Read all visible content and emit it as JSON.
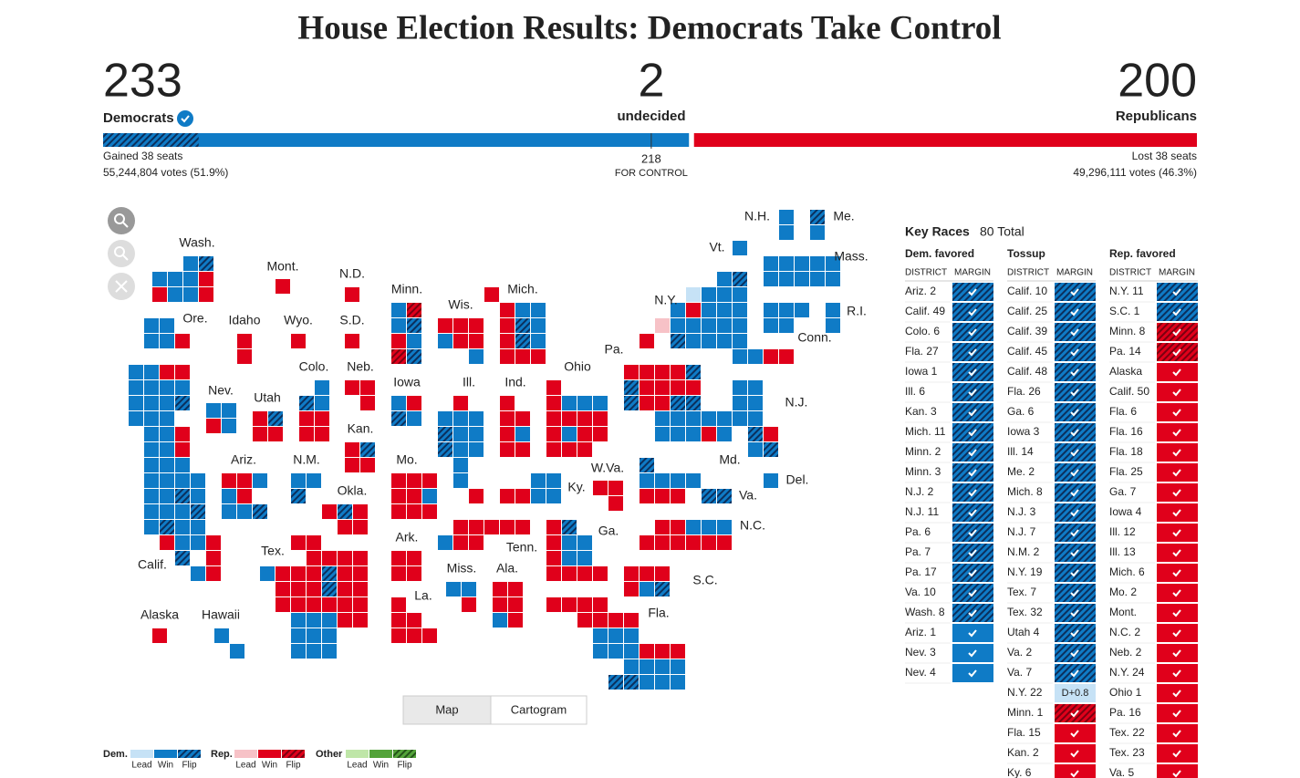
{
  "header": {
    "title": "House Election Results: Democrats Take Control"
  },
  "seats": {
    "dem": {
      "seats": 233,
      "label": "Democrats",
      "flips": 38,
      "change": "Gained 38 seats",
      "votes": "55,244,804 votes (51.9%)",
      "color": "#0f7bc6"
    },
    "undecided": {
      "seats": 2,
      "label": "undecided",
      "color": "#6b6b6b"
    },
    "rep": {
      "seats": 200,
      "label": "Republicans",
      "change": "Lost 38 seats",
      "votes": "49,296,111 votes (46.3%)",
      "color": "#e0001b"
    },
    "control": {
      "seats": 218,
      "label": "FOR CONTROL"
    }
  },
  "map": {
    "labels": [
      "Wash.",
      "Ore.",
      "Idaho",
      "Mont.",
      "Wyo.",
      "N.D.",
      "S.D.",
      "Minn.",
      "Wis.",
      "Mich.",
      "Nev.",
      "Utah",
      "Colo.",
      "Neb.",
      "Iowa",
      "Ill.",
      "Ind.",
      "Ohio",
      "Pa.",
      "N.Y.",
      "Vt.",
      "N.H.",
      "Me.",
      "Mass.",
      "R.I.",
      "Conn.",
      "N.J.",
      "Md.",
      "Del.",
      "Va.",
      "W.Va.",
      "Ky.",
      "N.C.",
      "S.C.",
      "Ga.",
      "Tenn.",
      "Ala.",
      "Miss.",
      "La.",
      "Ark.",
      "Mo.",
      "Okla.",
      "Kan.",
      "N.M.",
      "Ariz.",
      "Tex.",
      "Calif.",
      "Alaska",
      "Hawaii",
      "Fla."
    ],
    "views": [
      "Map",
      "Cartogram"
    ],
    "selected_view": "Map"
  },
  "legend": {
    "groups": [
      {
        "name": "Dem.",
        "colors": [
          "#c6e2f6",
          "#0f7bc6",
          "dem-flip"
        ]
      },
      {
        "name": "Rep.",
        "colors": [
          "#f7c2c7",
          "#e0001b",
          "rep-flip"
        ]
      },
      {
        "name": "Other",
        "colors": [
          "#bfe6a8",
          "#53a33a",
          "other-flip"
        ]
      }
    ],
    "labels": [
      "Lead",
      "Win",
      "Flip"
    ]
  },
  "key_races": {
    "title": "Key Races",
    "total": "80 Total",
    "column_headers": [
      "DISTRICT",
      "MARGIN"
    ],
    "columns": [
      {
        "name": "Dem. favored",
        "races": [
          {
            "district": "Ariz. 2",
            "result": "dem-flip"
          },
          {
            "district": "Calif. 49",
            "result": "dem-flip"
          },
          {
            "district": "Colo. 6",
            "result": "dem-flip"
          },
          {
            "district": "Fla. 27",
            "result": "dem-flip"
          },
          {
            "district": "Iowa 1",
            "result": "dem-flip"
          },
          {
            "district": "Ill. 6",
            "result": "dem-flip"
          },
          {
            "district": "Kan. 3",
            "result": "dem-flip"
          },
          {
            "district": "Mich. 11",
            "result": "dem-flip"
          },
          {
            "district": "Minn. 2",
            "result": "dem-flip"
          },
          {
            "district": "Minn. 3",
            "result": "dem-flip"
          },
          {
            "district": "N.J. 2",
            "result": "dem-flip"
          },
          {
            "district": "N.J. 11",
            "result": "dem-flip"
          },
          {
            "district": "Pa. 6",
            "result": "dem-flip"
          },
          {
            "district": "Pa. 7",
            "result": "dem-flip"
          },
          {
            "district": "Pa. 17",
            "result": "dem-flip"
          },
          {
            "district": "Va. 10",
            "result": "dem-flip"
          },
          {
            "district": "Wash. 8",
            "result": "dem-flip"
          },
          {
            "district": "Ariz. 1",
            "result": "dem-win"
          },
          {
            "district": "Nev. 3",
            "result": "dem-win"
          },
          {
            "district": "Nev. 4",
            "result": "dem-win"
          }
        ]
      },
      {
        "name": "Tossup",
        "races": [
          {
            "district": "Calif. 10",
            "result": "dem-flip"
          },
          {
            "district": "Calif. 25",
            "result": "dem-flip"
          },
          {
            "district": "Calif. 39",
            "result": "dem-flip"
          },
          {
            "district": "Calif. 45",
            "result": "dem-flip"
          },
          {
            "district": "Calif. 48",
            "result": "dem-flip"
          },
          {
            "district": "Fla. 26",
            "result": "dem-flip"
          },
          {
            "district": "Ga. 6",
            "result": "dem-flip"
          },
          {
            "district": "Iowa 3",
            "result": "dem-flip"
          },
          {
            "district": "Ill. 14",
            "result": "dem-flip"
          },
          {
            "district": "Me. 2",
            "result": "dem-flip"
          },
          {
            "district": "Mich. 8",
            "result": "dem-flip"
          },
          {
            "district": "N.J. 3",
            "result": "dem-flip"
          },
          {
            "district": "N.J. 7",
            "result": "dem-flip"
          },
          {
            "district": "N.M. 2",
            "result": "dem-flip"
          },
          {
            "district": "N.Y. 19",
            "result": "dem-flip"
          },
          {
            "district": "Tex. 7",
            "result": "dem-flip"
          },
          {
            "district": "Tex. 32",
            "result": "dem-flip"
          },
          {
            "district": "Utah 4",
            "result": "dem-flip"
          },
          {
            "district": "Va. 2",
            "result": "dem-flip"
          },
          {
            "district": "Va. 7",
            "result": "dem-flip"
          },
          {
            "district": "N.Y. 22",
            "result": "dem-lead",
            "margin": "D+0.8"
          },
          {
            "district": "Minn. 1",
            "result": "rep-flip"
          },
          {
            "district": "Fla. 15",
            "result": "rep-win"
          },
          {
            "district": "Kan. 2",
            "result": "rep-win"
          },
          {
            "district": "Ky. 6",
            "result": "rep-win"
          }
        ]
      },
      {
        "name": "Rep. favored",
        "races": [
          {
            "district": "N.Y. 11",
            "result": "dem-flip"
          },
          {
            "district": "S.C. 1",
            "result": "dem-flip"
          },
          {
            "district": "Minn. 8",
            "result": "rep-flip"
          },
          {
            "district": "Pa. 14",
            "result": "rep-flip"
          },
          {
            "district": "Alaska",
            "result": "rep-win"
          },
          {
            "district": "Calif. 50",
            "result": "rep-win"
          },
          {
            "district": "Fla. 6",
            "result": "rep-win"
          },
          {
            "district": "Fla. 16",
            "result": "rep-win"
          },
          {
            "district": "Fla. 18",
            "result": "rep-win"
          },
          {
            "district": "Fla. 25",
            "result": "rep-win"
          },
          {
            "district": "Ga. 7",
            "result": "rep-win"
          },
          {
            "district": "Iowa 4",
            "result": "rep-win"
          },
          {
            "district": "Ill. 12",
            "result": "rep-win"
          },
          {
            "district": "Ill. 13",
            "result": "rep-win"
          },
          {
            "district": "Mich. 6",
            "result": "rep-win"
          },
          {
            "district": "Mo. 2",
            "result": "rep-win"
          },
          {
            "district": "Mont.",
            "result": "rep-win"
          },
          {
            "district": "N.C. 2",
            "result": "rep-win"
          },
          {
            "district": "Neb. 2",
            "result": "rep-win"
          },
          {
            "district": "N.Y. 24",
            "result": "rep-win"
          },
          {
            "district": "Ohio 1",
            "result": "rep-win"
          },
          {
            "district": "Pa. 16",
            "result": "rep-win"
          },
          {
            "district": "Tex. 22",
            "result": "rep-win"
          },
          {
            "district": "Tex. 23",
            "result": "rep-win"
          },
          {
            "district": "Va. 5",
            "result": "rep-win"
          }
        ]
      }
    ]
  }
}
